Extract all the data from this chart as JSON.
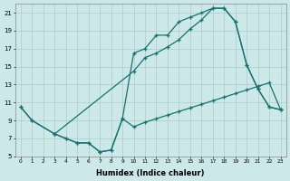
{
  "xlabel": "Humidex (Indice chaleur)",
  "bg_color": "#cce8e8",
  "grid_color": "#aacccc",
  "line_color": "#1a7070",
  "xlim": [
    -0.5,
    23.5
  ],
  "ylim": [
    5,
    22
  ],
  "xticks": [
    0,
    1,
    2,
    3,
    4,
    5,
    6,
    7,
    8,
    9,
    10,
    11,
    12,
    13,
    14,
    15,
    16,
    17,
    18,
    19,
    20,
    21,
    22,
    23
  ],
  "yticks": [
    5,
    7,
    9,
    11,
    13,
    15,
    17,
    19,
    21
  ],
  "line1_x": [
    0,
    1,
    3,
    4,
    5,
    6,
    7,
    8,
    9,
    10,
    11,
    12,
    13,
    14,
    15,
    16,
    17,
    18,
    19,
    20,
    21,
    22,
    23
  ],
  "line1_y": [
    10.5,
    9.0,
    7.5,
    7.0,
    6.5,
    6.5,
    5.5,
    5.7,
    9.2,
    8.3,
    8.8,
    9.2,
    9.6,
    10.0,
    10.4,
    10.8,
    11.2,
    11.6,
    12.0,
    12.4,
    12.8,
    13.2,
    10.2
  ],
  "line2_x": [
    0,
    1,
    3,
    4,
    5,
    6,
    7,
    8,
    9,
    10,
    11,
    12,
    13,
    14,
    15,
    16,
    17,
    18,
    19,
    20,
    21,
    22,
    23
  ],
  "line2_y": [
    10.5,
    9.0,
    7.5,
    7.0,
    6.5,
    6.5,
    5.5,
    5.7,
    9.2,
    16.5,
    17.0,
    18.5,
    18.5,
    20.0,
    20.5,
    21.0,
    21.5,
    21.5,
    20.0,
    15.2,
    12.5,
    10.5,
    10.2
  ],
  "line3_x": [
    3,
    10,
    11,
    12,
    13,
    14,
    15,
    16,
    17,
    18,
    19,
    20,
    21,
    22,
    23
  ],
  "line3_y": [
    7.5,
    14.5,
    16.0,
    16.5,
    17.2,
    18.0,
    19.2,
    20.2,
    21.5,
    21.5,
    20.0,
    15.2,
    12.5,
    10.5,
    10.2
  ]
}
